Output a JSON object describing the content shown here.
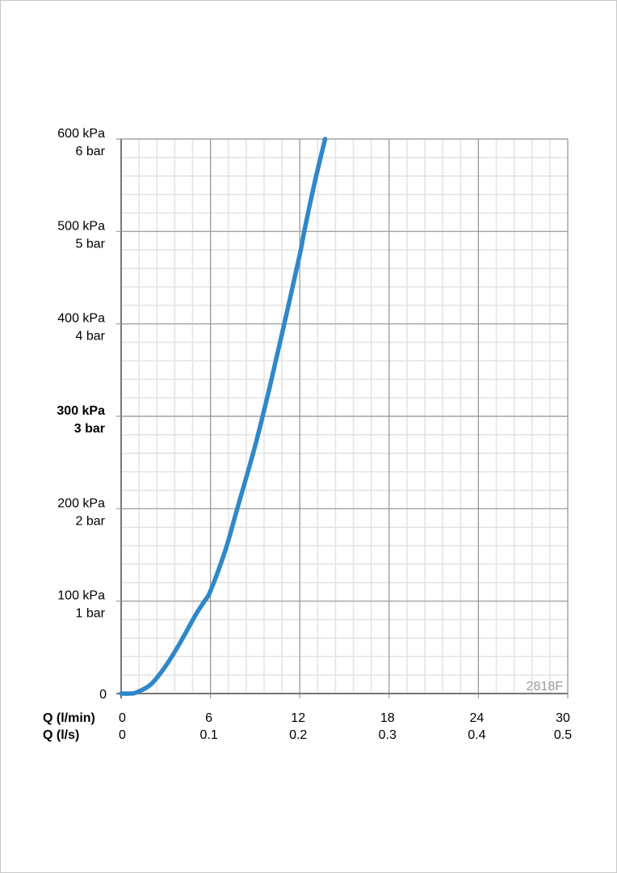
{
  "chart_data": {
    "type": "line",
    "code": "2818F",
    "x_axis": {
      "rows": [
        {
          "label": "Q (l/min)",
          "ticks": [
            "0",
            "6",
            "12",
            "18",
            "24",
            "30"
          ]
        },
        {
          "label": "Q (l/s)",
          "ticks": [
            "0",
            "0.1",
            "0.2",
            "0.3",
            "0.4",
            "0.5"
          ]
        }
      ],
      "range": [
        0,
        30
      ],
      "minor_step": 1.2
    },
    "y_axis": {
      "range": [
        0,
        600
      ],
      "minor_step": 20,
      "ticks": [
        {
          "value": 0,
          "kpa": "0",
          "bar": ""
        },
        {
          "value": 100,
          "kpa": "100 kPa",
          "bar": "1 bar"
        },
        {
          "value": 200,
          "kpa": "200 kPa",
          "bar": "2 bar"
        },
        {
          "value": 300,
          "kpa": "300 kPa",
          "bar": "3 bar",
          "bold": true
        },
        {
          "value": 400,
          "kpa": "400 kPa",
          "bar": "4 bar"
        },
        {
          "value": 500,
          "kpa": "500 kPa",
          "bar": "5 bar"
        },
        {
          "value": 600,
          "kpa": "600 kPa",
          "bar": "6 bar"
        }
      ]
    },
    "grid": true,
    "series": [
      {
        "color": "#2f88c8",
        "x": [
          0,
          0.5,
          1,
          2,
          3,
          4,
          5,
          5.6,
          6,
          7,
          7.8,
          9,
          10,
          11,
          12,
          12.3,
          13,
          13.7
        ],
        "y": [
          0,
          0,
          1,
          10,
          30,
          56,
          85,
          100,
          111,
          155,
          200,
          268,
          333,
          403,
          475,
          500,
          553,
          600
        ]
      }
    ]
  }
}
